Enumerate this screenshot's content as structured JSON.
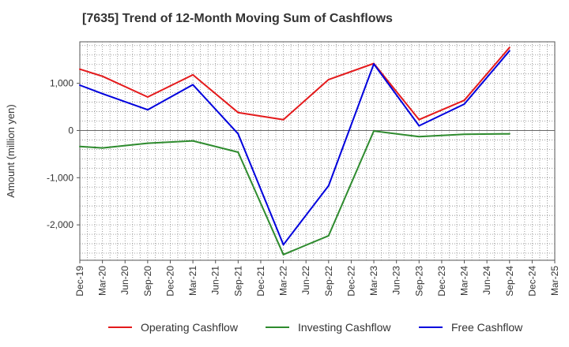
{
  "chart_data": {
    "type": "line",
    "title": "[7635]  Trend of 12-Month Moving Sum of Cashflows",
    "ylabel": "Amount (million yen)",
    "xlabel": "",
    "ylim": [
      -2750,
      1880
    ],
    "yticks": [
      1000,
      0,
      -1000,
      -2000
    ],
    "ytick_labels": [
      "1,000",
      "0",
      "-1,000",
      "-2,000"
    ],
    "x": [
      "Dec-19",
      "Mar-20",
      "Jun-20",
      "Sep-20",
      "Dec-20",
      "Mar-21",
      "Jun-21",
      "Sep-21",
      "Dec-21",
      "Mar-22",
      "Jun-22",
      "Sep-22",
      "Dec-22",
      "Mar-23",
      "Jun-23",
      "Sep-23",
      "Dec-23",
      "Mar-24",
      "Jun-24",
      "Sep-24",
      "Dec-24",
      "Mar-25"
    ],
    "grid": true,
    "legend_position": "bottom",
    "series": [
      {
        "name": "Operating Cashflow",
        "color": "#e41a1c",
        "points": [
          [
            "Dec-19",
            1300
          ],
          [
            "Mar-20",
            1150
          ],
          [
            "Sep-20",
            710
          ],
          [
            "Mar-21",
            1180
          ],
          [
            "Sep-21",
            380
          ],
          [
            "Mar-22",
            230
          ],
          [
            "Sep-22",
            1080
          ],
          [
            "Mar-23",
            1420
          ],
          [
            "Sep-23",
            230
          ],
          [
            "Mar-24",
            640
          ],
          [
            "Sep-24",
            1760
          ]
        ]
      },
      {
        "name": "Investing Cashflow",
        "color": "#2e8b2e",
        "points": [
          [
            "Dec-19",
            -340
          ],
          [
            "Mar-20",
            -370
          ],
          [
            "Sep-20",
            -270
          ],
          [
            "Mar-21",
            -220
          ],
          [
            "Sep-21",
            -460
          ],
          [
            "Mar-22",
            -2630
          ],
          [
            "Sep-22",
            -2230
          ],
          [
            "Mar-23",
            -10
          ],
          [
            "Sep-23",
            -130
          ],
          [
            "Mar-24",
            -80
          ],
          [
            "Sep-24",
            -70
          ]
        ]
      },
      {
        "name": "Free Cashflow",
        "color": "#0000dd",
        "points": [
          [
            "Dec-19",
            960
          ],
          [
            "Mar-20",
            780
          ],
          [
            "Sep-20",
            440
          ],
          [
            "Mar-21",
            970
          ],
          [
            "Sep-21",
            -70
          ],
          [
            "Mar-22",
            -2420
          ],
          [
            "Sep-22",
            -1170
          ],
          [
            "Mar-23",
            1410
          ],
          [
            "Sep-23",
            100
          ],
          [
            "Mar-24",
            560
          ],
          [
            "Sep-24",
            1690
          ]
        ]
      }
    ]
  }
}
